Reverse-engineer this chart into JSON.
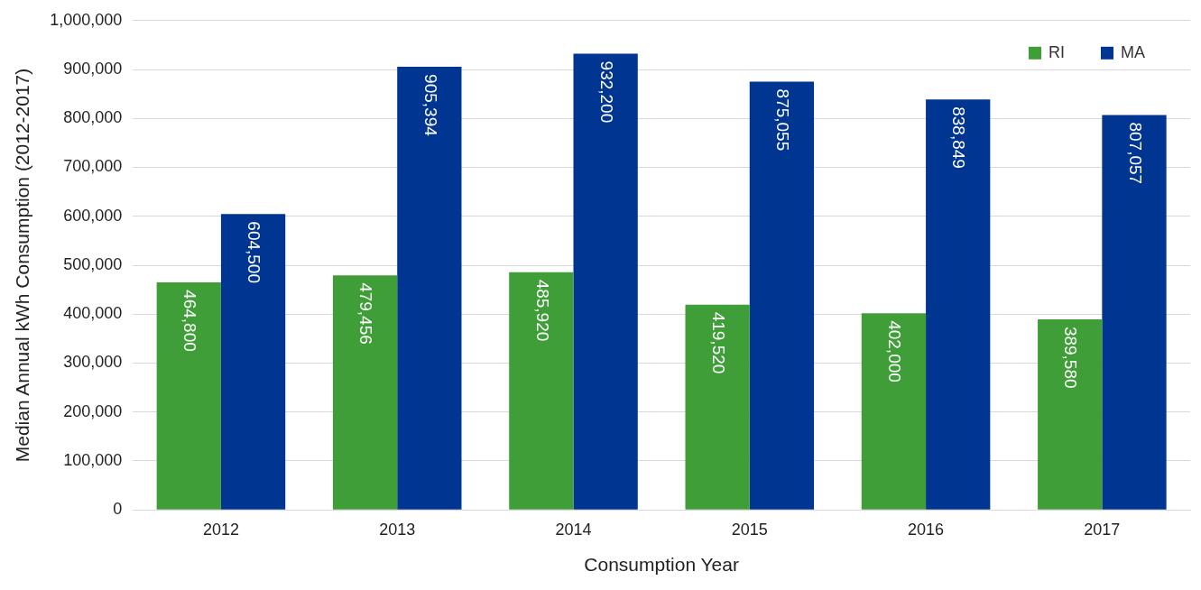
{
  "chart_data": {
    "type": "bar",
    "xlabel": "Consumption Year",
    "ylabel": "Median Annual kWh Consumption (2012-2017)",
    "categories": [
      "2012",
      "2013",
      "2014",
      "2015",
      "2016",
      "2017"
    ],
    "series": [
      {
        "name": "RI",
        "color": "#3f9e37",
        "values": [
          464800,
          479456,
          485920,
          419520,
          402000,
          389580
        ],
        "value_labels": [
          "464,800",
          "479,456",
          "485,920",
          "419,520",
          "402,000",
          "389,580"
        ]
      },
      {
        "name": "MA",
        "color": "#003591",
        "values": [
          604500,
          905394,
          932200,
          875055,
          838849,
          807057
        ],
        "value_labels": [
          "604,500",
          "905,394",
          "932,200",
          "875,055",
          "838,849",
          "807,057"
        ]
      }
    ],
    "ylim": [
      0,
      1000000
    ],
    "yticks": [
      {
        "value": 0,
        "label": "0"
      },
      {
        "value": 100000,
        "label": "100,000"
      },
      {
        "value": 200000,
        "label": "200,000"
      },
      {
        "value": 300000,
        "label": "300,000"
      },
      {
        "value": 400000,
        "label": "400,000"
      },
      {
        "value": 500000,
        "label": "500,000"
      },
      {
        "value": 600000,
        "label": "600,000"
      },
      {
        "value": 700000,
        "label": "700,000"
      },
      {
        "value": 800000,
        "label": "800,000"
      },
      {
        "value": 900000,
        "label": "900,000"
      },
      {
        "value": 1000000,
        "label": "1,000,000"
      }
    ],
    "grid": "y",
    "legend": "top right"
  }
}
